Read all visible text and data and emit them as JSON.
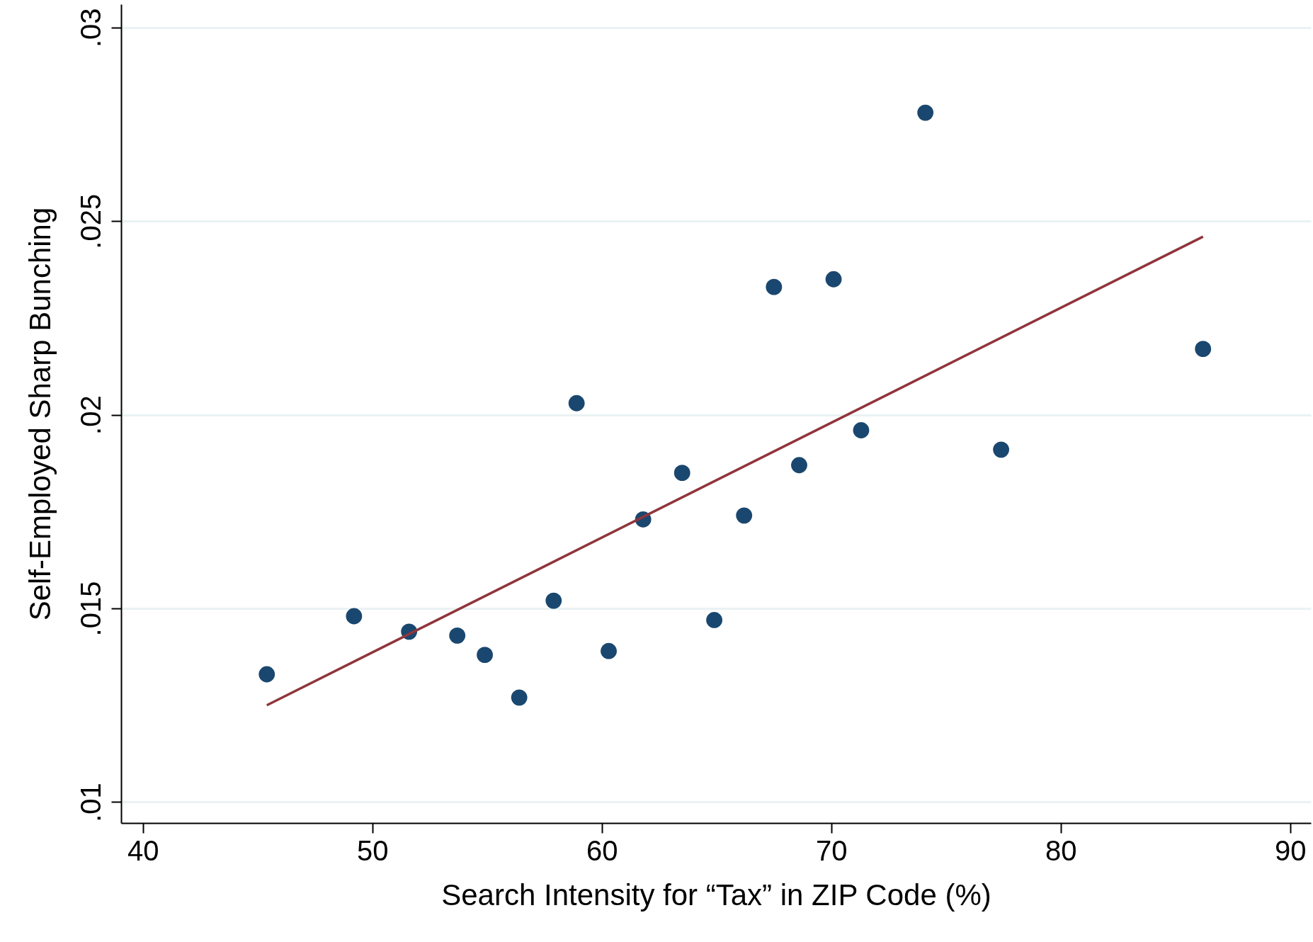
{
  "chart_data": {
    "type": "scatter",
    "xlabel": "Search Intensity for “Tax” in ZIP Code (%)",
    "ylabel": "Self-Employed Sharp Bunching",
    "series": [
      {
        "color": "#1a476f",
        "x": [
          45.4,
          49.2,
          51.6,
          53.7,
          54.9,
          56.4,
          57.9,
          58.9,
          60.3,
          61.8,
          63.5,
          64.9,
          66.2,
          67.5,
          68.6,
          70.1,
          71.3,
          74.1,
          77.4,
          86.2
        ],
        "values": [
          0.0133,
          0.0148,
          0.0144,
          0.0143,
          0.0138,
          0.0127,
          0.0152,
          0.0203,
          0.0139,
          0.0173,
          0.0185,
          0.0147,
          0.0174,
          0.0233,
          0.0187,
          0.0235,
          0.0196,
          0.0278,
          0.0191,
          0.0217
        ]
      },
      {
        "type": "line",
        "marker": "none",
        "color": "#90353b",
        "x": [
          45.4,
          86.2
        ],
        "values": [
          0.0125,
          0.0246
        ]
      }
    ],
    "xlim": [
      39.05,
      90.9
    ],
    "xticks": [
      40,
      50,
      60,
      70,
      80,
      90
    ],
    "ylim": [
      0.00946,
      0.0306
    ],
    "yticks": [
      {
        "value": 0.01,
        "label": ".01"
      },
      {
        "value": 0.015,
        "label": ".015"
      },
      {
        "value": 0.02,
        "label": ".02"
      },
      {
        "value": 0.025,
        "label": ".025"
      },
      {
        "value": 0.03,
        "label": ".03"
      }
    ],
    "grid": "y",
    "marker": "circle",
    "line_style": "solid"
  }
}
